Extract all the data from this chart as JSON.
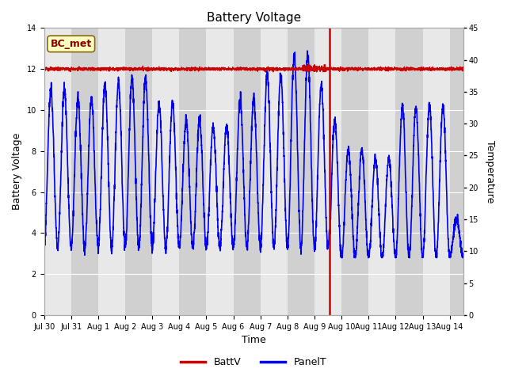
{
  "title": "Battery Voltage",
  "xlabel": "Time",
  "ylabel_left": "Battery Voltage",
  "ylabel_right": "Temperature",
  "left_ylim": [
    0,
    14
  ],
  "right_ylim": [
    0,
    45
  ],
  "left_yticks": [
    0,
    2,
    4,
    6,
    8,
    10,
    12,
    14
  ],
  "right_yticks": [
    0,
    5,
    10,
    15,
    20,
    25,
    30,
    35,
    40,
    45
  ],
  "bg_color_light": "#e8e8e8",
  "bg_color_dark": "#d0d0d0",
  "fig_color": "#ffffff",
  "annotation_label": "BC_met",
  "annotation_color": "#8B0000",
  "annotation_bg": "#ffffc0",
  "legend_entries": [
    "BattV",
    "PanelT"
  ],
  "batt_color": "#cc0000",
  "panel_color": "#0000ee",
  "vline_color": "#cc0000",
  "total_days": 15.5,
  "x_tick_labels": [
    "Jul 30",
    "Jul 31",
    "Aug 1",
    "Aug 2",
    "Aug 3",
    "Aug 4",
    "Aug 5",
    "Aug 6",
    "Aug 7",
    "Aug 8",
    "Aug 9",
    "Aug 10",
    "Aug 11",
    "Aug 12",
    "Aug 13",
    "Aug 14"
  ],
  "x_tick_positions": [
    0,
    1,
    2,
    3,
    4,
    5,
    6,
    7,
    8,
    9,
    10,
    11,
    12,
    13,
    14,
    15
  ],
  "vline_x": 10.55,
  "panel_min": 3.0,
  "panel_max": 12.5,
  "batt_level": 12.0,
  "grid_color": "#ffffff",
  "grid_linewidth": 0.8
}
